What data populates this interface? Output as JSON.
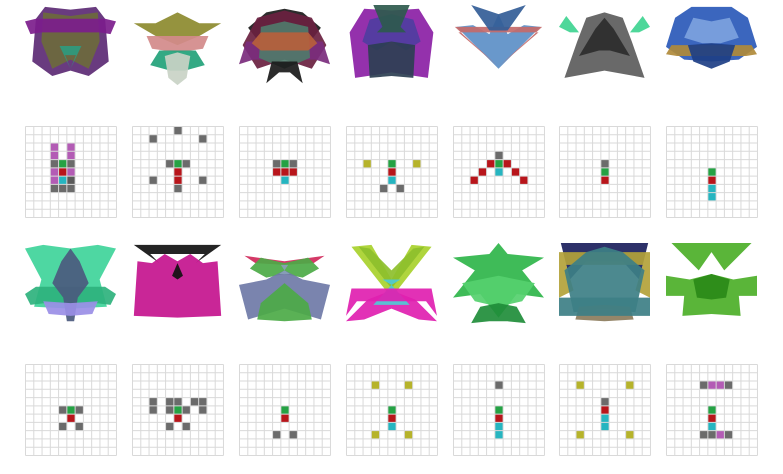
{
  "colors": {
    "grid_line": "#d9d9d9",
    "grid_bg": "#ffffff",
    "cell": {
      "g": "#6b6b6b",
      "r": "#b8151b",
      "e": "#25a244",
      "c": "#26b5c0",
      "p": "#b35cb5",
      "y": "#b6b32a",
      "d": "#5a5a5a"
    }
  },
  "grid_size": 11,
  "sprite_rows": [
    [
      {
        "name": "sprite-violet-olive",
        "palette": [
          "#5c2a74",
          "#6d6a3c",
          "#7c1d8c",
          "#2f9a7e"
        ]
      },
      {
        "name": "sprite-olive-wing",
        "palette": [
          "#8c8a2e",
          "#d38a8a",
          "#22a27a",
          "#c9d3c6"
        ]
      },
      {
        "name": "sprite-maroon-teal",
        "palette": [
          "#6a2140",
          "#4f7a6a",
          "#b75f3c",
          "#7b2c7d",
          "#1a1a1a"
        ]
      },
      {
        "name": "sprite-purple-slate",
        "palette": [
          "#8b1fa5",
          "#2c3f52",
          "#4f3da0",
          "#2e5a4d"
        ]
      },
      {
        "name": "sprite-blue-arrow",
        "palette": [
          "#5c8fc7",
          "#c46a6a",
          "#335d97"
        ]
      },
      {
        "name": "sprite-grey-spike",
        "palette": [
          "#5c5c5c",
          "#3fd491",
          "#2c2c2c"
        ]
      },
      {
        "name": "sprite-blue-crown",
        "palette": [
          "#2a59b8",
          "#7da2de",
          "#b08a3a",
          "#1e3f86"
        ]
      }
    ],
    [
      {
        "name": "sprite-mint-figure",
        "palette": [
          "#3fd49a",
          "#4b5a7e",
          "#9a8ee6",
          "#2eb27d"
        ]
      },
      {
        "name": "sprite-magenta-horn",
        "palette": [
          "#c4148e",
          "#111111",
          "#2aa44a"
        ]
      },
      {
        "name": "sprite-slate-green",
        "palette": [
          "#6f7aa7",
          "#4caa47",
          "#d0285a",
          "#8aa0b8"
        ]
      },
      {
        "name": "sprite-lime-pink",
        "palette": [
          "#a8d12c",
          "#e01fb0",
          "#4fcad6",
          "#8dbf2b"
        ]
      },
      {
        "name": "sprite-green-star",
        "palette": [
          "#2fb54a",
          "#55d06e",
          "#1f8d3a"
        ]
      },
      {
        "name": "sprite-teal-navy",
        "palette": [
          "#3d7f86",
          "#1b1f5c",
          "#b3a23a",
          "#8c7c5c"
        ]
      },
      {
        "name": "sprite-green-bug",
        "palette": [
          "#4caf28",
          "#2a8a18"
        ]
      }
    ]
  ],
  "grid_rows": [
    [
      {
        "name": "grid-1",
        "cells": [
          [
            5,
            2,
            "p"
          ],
          [
            3,
            2,
            "p"
          ],
          [
            3,
            3,
            "p"
          ],
          [
            5,
            3,
            "p"
          ],
          [
            3,
            4,
            "g"
          ],
          [
            4,
            4,
            "e"
          ],
          [
            5,
            4,
            "g"
          ],
          [
            3,
            5,
            "p"
          ],
          [
            4,
            5,
            "r"
          ],
          [
            5,
            5,
            "p"
          ],
          [
            4,
            6,
            "c"
          ],
          [
            3,
            6,
            "p"
          ],
          [
            5,
            6,
            "d"
          ],
          [
            3,
            7,
            "g"
          ],
          [
            4,
            7,
            "g"
          ],
          [
            5,
            7,
            "g"
          ]
        ]
      },
      {
        "name": "grid-2",
        "cells": [
          [
            5,
            0,
            "g"
          ],
          [
            2,
            1,
            "g"
          ],
          [
            8,
            1,
            "g"
          ],
          [
            4,
            4,
            "g"
          ],
          [
            5,
            4,
            "e"
          ],
          [
            6,
            4,
            "g"
          ],
          [
            5,
            5,
            "r"
          ],
          [
            2,
            6,
            "g"
          ],
          [
            5,
            6,
            "r"
          ],
          [
            8,
            6,
            "g"
          ],
          [
            5,
            7,
            "g"
          ]
        ]
      },
      {
        "name": "grid-3",
        "cells": [
          [
            4,
            4,
            "g"
          ],
          [
            5,
            4,
            "e"
          ],
          [
            6,
            4,
            "g"
          ],
          [
            4,
            5,
            "r"
          ],
          [
            5,
            5,
            "r"
          ],
          [
            6,
            5,
            "r"
          ],
          [
            5,
            6,
            "c"
          ]
        ]
      },
      {
        "name": "grid-4",
        "cells": [
          [
            2,
            4,
            "y"
          ],
          [
            5,
            4,
            "e"
          ],
          [
            8,
            4,
            "y"
          ],
          [
            5,
            5,
            "r"
          ],
          [
            5,
            6,
            "c"
          ],
          [
            4,
            7,
            "g"
          ],
          [
            6,
            7,
            "g"
          ]
        ]
      },
      {
        "name": "grid-5",
        "cells": [
          [
            5,
            3,
            "g"
          ],
          [
            4,
            4,
            "r"
          ],
          [
            5,
            4,
            "e"
          ],
          [
            6,
            4,
            "r"
          ],
          [
            3,
            5,
            "r"
          ],
          [
            5,
            5,
            "c"
          ],
          [
            7,
            5,
            "r"
          ],
          [
            2,
            6,
            "r"
          ],
          [
            8,
            6,
            "r"
          ]
        ]
      },
      {
        "name": "grid-6",
        "cells": [
          [
            5,
            4,
            "g"
          ],
          [
            5,
            5,
            "e"
          ],
          [
            5,
            6,
            "r"
          ]
        ]
      },
      {
        "name": "grid-7",
        "cells": [
          [
            5,
            5,
            "e"
          ],
          [
            5,
            6,
            "r"
          ],
          [
            5,
            7,
            "c"
          ],
          [
            5,
            8,
            "c"
          ]
        ]
      }
    ],
    [
      {
        "name": "grid-8",
        "cells": [
          [
            4,
            5,
            "g"
          ],
          [
            5,
            5,
            "e"
          ],
          [
            6,
            5,
            "g"
          ],
          [
            5,
            6,
            "r"
          ],
          [
            4,
            7,
            "g"
          ],
          [
            6,
            7,
            "g"
          ]
        ]
      },
      {
        "name": "grid-9",
        "cells": [
          [
            2,
            4,
            "g"
          ],
          [
            4,
            4,
            "g"
          ],
          [
            5,
            4,
            "g"
          ],
          [
            7,
            4,
            "g"
          ],
          [
            8,
            4,
            "g"
          ],
          [
            2,
            5,
            "g"
          ],
          [
            4,
            5,
            "g"
          ],
          [
            5,
            5,
            "e"
          ],
          [
            6,
            5,
            "g"
          ],
          [
            8,
            5,
            "g"
          ],
          [
            5,
            6,
            "r"
          ],
          [
            4,
            7,
            "g"
          ],
          [
            6,
            7,
            "g"
          ]
        ]
      },
      {
        "name": "grid-10",
        "cells": [
          [
            5,
            5,
            "e"
          ],
          [
            5,
            6,
            "r"
          ],
          [
            4,
            8,
            "g"
          ],
          [
            6,
            8,
            "g"
          ]
        ]
      },
      {
        "name": "grid-11",
        "cells": [
          [
            3,
            2,
            "y"
          ],
          [
            7,
            2,
            "y"
          ],
          [
            5,
            5,
            "e"
          ],
          [
            5,
            6,
            "r"
          ],
          [
            5,
            7,
            "c"
          ],
          [
            3,
            8,
            "y"
          ],
          [
            7,
            8,
            "y"
          ]
        ]
      },
      {
        "name": "grid-12",
        "cells": [
          [
            5,
            2,
            "g"
          ],
          [
            5,
            5,
            "e"
          ],
          [
            5,
            6,
            "r"
          ],
          [
            5,
            7,
            "c"
          ],
          [
            5,
            8,
            "c"
          ]
        ]
      },
      {
        "name": "grid-13",
        "cells": [
          [
            2,
            2,
            "y"
          ],
          [
            8,
            2,
            "y"
          ],
          [
            5,
            4,
            "g"
          ],
          [
            5,
            5,
            "r"
          ],
          [
            5,
            6,
            "c"
          ],
          [
            5,
            7,
            "c"
          ],
          [
            2,
            8,
            "y"
          ],
          [
            8,
            8,
            "y"
          ]
        ]
      },
      {
        "name": "grid-14",
        "cells": [
          [
            4,
            2,
            "g"
          ],
          [
            5,
            2,
            "p"
          ],
          [
            6,
            2,
            "p"
          ],
          [
            7,
            2,
            "g"
          ],
          [
            5,
            5,
            "e"
          ],
          [
            5,
            6,
            "r"
          ],
          [
            5,
            7,
            "c"
          ],
          [
            4,
            8,
            "g"
          ],
          [
            5,
            8,
            "g"
          ],
          [
            6,
            8,
            "p"
          ],
          [
            7,
            8,
            "g"
          ]
        ]
      }
    ]
  ]
}
